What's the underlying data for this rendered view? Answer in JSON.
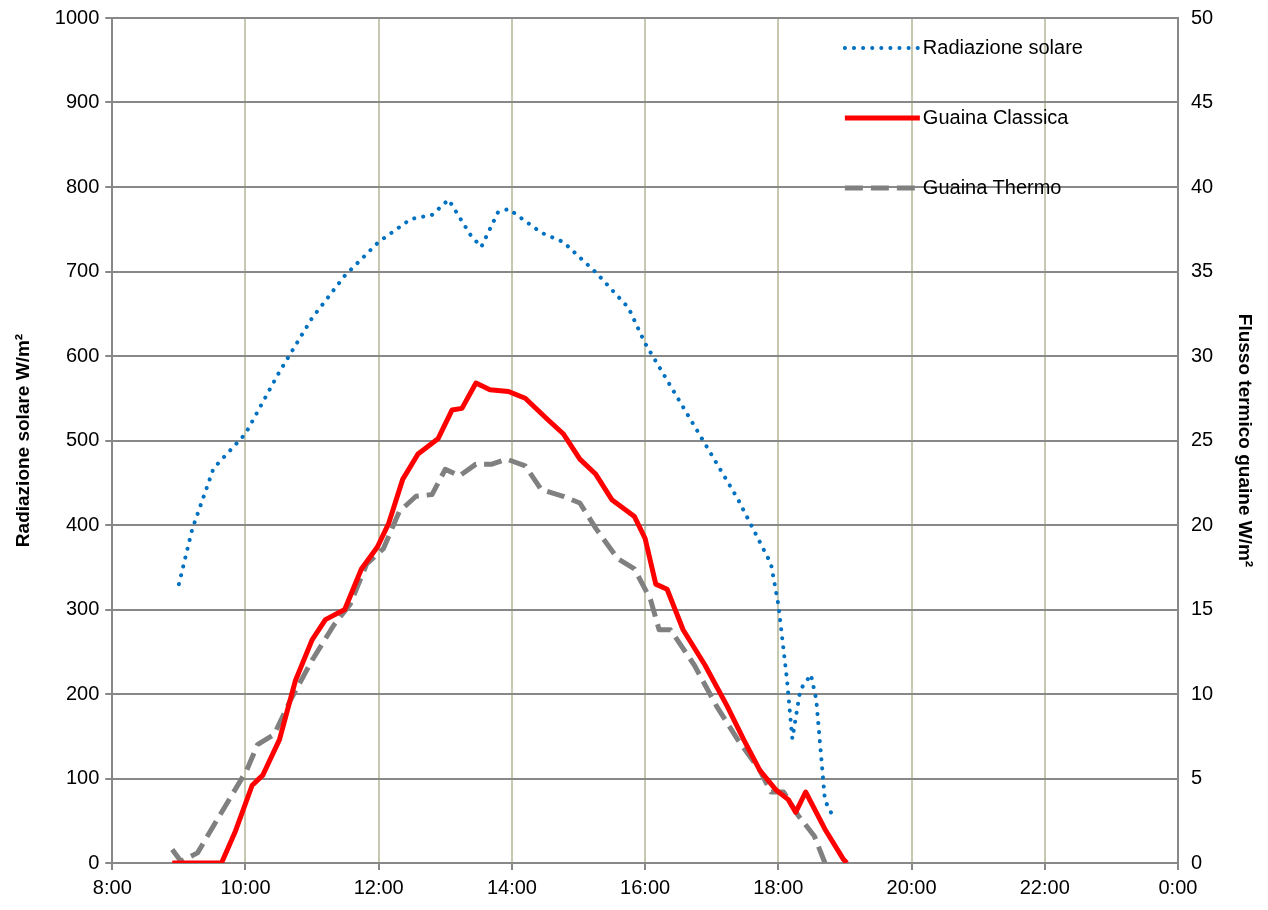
{
  "chart_data": {
    "type": "line",
    "ylabel": "Radiazione solare W/m²",
    "y2label": "Flusso termico guaine W/m²",
    "xlim": [
      8,
      24
    ],
    "xticks": [
      {
        "value": 8,
        "label": "8:00"
      },
      {
        "value": 10,
        "label": "10:00"
      },
      {
        "value": 12,
        "label": "12:00"
      },
      {
        "value": 14,
        "label": "14:00"
      },
      {
        "value": 16,
        "label": "16:00"
      },
      {
        "value": 18,
        "label": "18:00"
      },
      {
        "value": 20,
        "label": "20:00"
      },
      {
        "value": 22,
        "label": "22:00"
      },
      {
        "value": 24,
        "label": "0:00"
      }
    ],
    "ylim": [
      0,
      1000
    ],
    "yticks": [
      0,
      100,
      200,
      300,
      400,
      500,
      600,
      700,
      800,
      900,
      1000
    ],
    "y2lim": [
      0,
      50
    ],
    "y2ticks": [
      0,
      5,
      10,
      15,
      20,
      25,
      30,
      35,
      40,
      45,
      50
    ],
    "grid": true,
    "legend": "top right",
    "marker": "none",
    "series": [
      {
        "name": "Radiazione solare",
        "color": "#0070c0",
        "line_style": "dotted",
        "x": [
          9.0,
          9.2,
          9.52,
          10.0,
          10.5,
          11.0,
          11.49,
          12.0,
          12.48,
          12.8,
          13.05,
          13.38,
          13.54,
          13.79,
          13.95,
          14.44,
          14.77,
          15.26,
          15.75,
          16.0,
          16.4,
          16.9,
          17.39,
          17.89,
          18.0,
          18.13,
          18.21,
          18.33,
          18.49,
          18.57,
          18.7,
          18.84
        ],
        "values": [
          330,
          395,
          467,
          508,
          580,
          645,
          695,
          735,
          762,
          767,
          785,
          743,
          729,
          770,
          774,
          746,
          735,
          699,
          657,
          615,
          562,
          496,
          431,
          354,
          306,
          217,
          147,
          205,
          223,
          193,
          74,
          52
        ]
      },
      {
        "name": "Guaina Classica",
        "color": "#ff0000",
        "line_style": "solid",
        "axis": "y2",
        "x": [
          8.9,
          9.64,
          9.85,
          10.1,
          10.26,
          10.51,
          10.75,
          11.0,
          11.2,
          11.49,
          11.74,
          11.98,
          12.15,
          12.36,
          12.59,
          12.89,
          13.1,
          13.25,
          13.46,
          13.67,
          13.95,
          14.2,
          14.52,
          14.77,
          15.02,
          15.26,
          15.5,
          15.84,
          16.0,
          16.16,
          16.33,
          16.57,
          16.9,
          17.23,
          17.48,
          17.72,
          17.97,
          18.15,
          18.26,
          18.41,
          18.7,
          18.98,
          19.03
        ],
        "values": [
          0,
          0,
          1.9,
          4.6,
          5.2,
          7.3,
          10.8,
          13.2,
          14.4,
          15.0,
          17.4,
          18.7,
          20.1,
          22.7,
          24.2,
          25.1,
          26.8,
          26.9,
          28.4,
          28.0,
          27.9,
          27.5,
          26.3,
          25.4,
          23.9,
          23.0,
          21.5,
          20.5,
          19.2,
          16.5,
          16.2,
          13.8,
          11.7,
          9.3,
          7.3,
          5.5,
          4.3,
          3.75,
          3.0,
          4.2,
          2.0,
          0.2,
          0
        ]
      },
      {
        "name": "Guaina Thermo",
        "color": "#808080",
        "line_style": "dashed",
        "axis": "y2",
        "x": [
          8.9,
          9.03,
          9.28,
          9.61,
          10.02,
          10.18,
          10.43,
          10.67,
          11.0,
          11.33,
          11.57,
          11.82,
          12.07,
          12.31,
          12.56,
          12.8,
          13.0,
          13.21,
          13.46,
          13.7,
          13.92,
          14.2,
          14.44,
          14.77,
          15.02,
          15.26,
          15.59,
          15.84,
          16.08,
          16.21,
          16.38,
          16.74,
          17.07,
          17.39,
          17.72,
          17.89,
          18.08,
          18.3,
          18.54,
          18.7
        ],
        "values": [
          0.8,
          0.1,
          0.6,
          2.8,
          5.5,
          7.0,
          7.6,
          9.6,
          12.0,
          14.1,
          15.3,
          17.7,
          18.6,
          20.8,
          21.7,
          21.8,
          23.3,
          22.9,
          23.6,
          23.6,
          23.9,
          23.5,
          22.1,
          21.7,
          21.3,
          19.8,
          18.0,
          17.4,
          15.6,
          13.8,
          13.8,
          11.7,
          9.3,
          7.3,
          5.5,
          4.2,
          4.2,
          2.8,
          1.6,
          0
        ]
      }
    ]
  }
}
